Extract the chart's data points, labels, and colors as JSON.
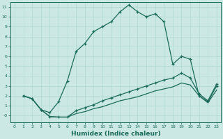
{
  "title": "",
  "xlabel": "Humidex (Indice chaleur)",
  "ylabel": "",
  "bg_color": "#cce8e4",
  "line_color": "#1a6b5a",
  "grid_color": "#b0d8d0",
  "xlim": [
    -0.5,
    23.5
  ],
  "ylim": [
    -0.7,
    11.5
  ],
  "xticks": [
    0,
    1,
    2,
    3,
    4,
    5,
    6,
    7,
    8,
    9,
    10,
    11,
    12,
    13,
    14,
    15,
    16,
    17,
    18,
    19,
    20,
    21,
    22,
    23
  ],
  "yticks": [
    0,
    1,
    2,
    3,
    4,
    5,
    6,
    7,
    8,
    9,
    10,
    11
  ],
  "ytick_labels": [
    "-0",
    "1",
    "2",
    "3",
    "4",
    "5",
    "6",
    "7",
    "8",
    "9",
    "10",
    "11"
  ],
  "line1_x": [
    1,
    2,
    3,
    4,
    5,
    6,
    7,
    8,
    9,
    10,
    11,
    12,
    13,
    14,
    15,
    16,
    17,
    18,
    19,
    20,
    21,
    22,
    23
  ],
  "line1_y": [
    2.0,
    1.7,
    0.6,
    0.3,
    1.4,
    3.5,
    6.5,
    7.3,
    8.5,
    9.0,
    9.5,
    10.5,
    11.2,
    10.5,
    10.0,
    10.3,
    9.5,
    5.2,
    6.0,
    5.7,
    2.0,
    1.4,
    3.0
  ],
  "line2_x": [
    1,
    2,
    3,
    4,
    5,
    6,
    7,
    8,
    9,
    10,
    11,
    12,
    13,
    14,
    15,
    16,
    17,
    18,
    19,
    20,
    21,
    22,
    23
  ],
  "line2_y": [
    2.0,
    1.7,
    0.6,
    -0.1,
    -0.15,
    -0.15,
    0.5,
    0.8,
    1.1,
    1.5,
    1.8,
    2.1,
    2.4,
    2.7,
    3.0,
    3.3,
    3.6,
    3.8,
    4.3,
    3.8,
    2.2,
    1.5,
    3.2
  ],
  "line3_x": [
    1,
    2,
    3,
    4,
    5,
    6,
    7,
    8,
    9,
    10,
    11,
    12,
    13,
    14,
    15,
    16,
    17,
    18,
    19,
    20,
    21,
    22,
    23
  ],
  "line3_y": [
    2.0,
    1.7,
    0.6,
    -0.1,
    -0.15,
    -0.15,
    0.2,
    0.4,
    0.7,
    0.9,
    1.2,
    1.5,
    1.7,
    1.9,
    2.2,
    2.5,
    2.7,
    2.9,
    3.3,
    3.1,
    2.0,
    1.3,
    2.6
  ]
}
